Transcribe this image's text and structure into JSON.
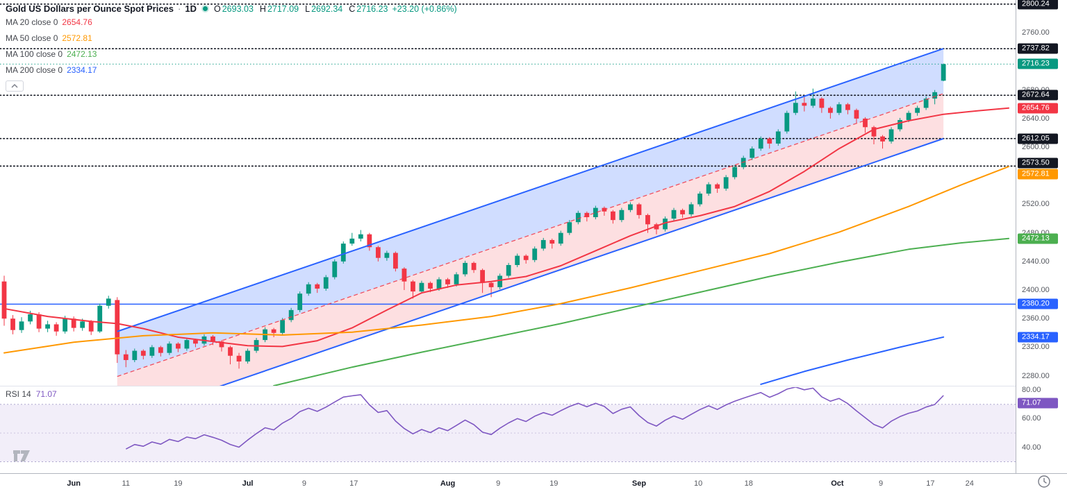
{
  "header": {
    "title": "Gold US Dollars per Ounce Spot Prices",
    "separator": "·",
    "timeframe": "1D",
    "value_color": "#089981",
    "ohlc": [
      {
        "label": "O",
        "value": "2693.03"
      },
      {
        "label": "H",
        "value": "2717.09"
      },
      {
        "label": "L",
        "value": "2692.34"
      },
      {
        "label": "C",
        "value": "2716.23"
      }
    ],
    "change": "+23.20 (+0.86%)"
  },
  "indicators": [
    {
      "label": "MA 20 close 0",
      "value": "2654.76",
      "color": "#F23645"
    },
    {
      "label": "MA 50 close 0",
      "value": "2572.81",
      "color": "#FF9800"
    },
    {
      "label": "MA 100 close 0",
      "value": "2472.13",
      "color": "#4CAF50"
    },
    {
      "label": "MA 200 close 0",
      "value": "2334.17",
      "color": "#2962FF"
    }
  ],
  "rsi_label": {
    "label": "RSI 14",
    "value": "71.07",
    "color": "#7E57C2"
  },
  "price_axis": {
    "labels": [
      {
        "text": "2760.00",
        "price": 2760
      },
      {
        "text": "2680.00",
        "price": 2680
      },
      {
        "text": "2640.00",
        "price": 2640
      },
      {
        "text": "2600.00",
        "price": 2600
      },
      {
        "text": "2520.00",
        "price": 2520
      },
      {
        "text": "2480.00",
        "price": 2480
      },
      {
        "text": "2440.00",
        "price": 2440
      },
      {
        "text": "2400.00",
        "price": 2400
      },
      {
        "text": "2360.00",
        "price": 2360
      },
      {
        "text": "2320.00",
        "price": 2320
      },
      {
        "text": "2280.00",
        "price": 2280
      }
    ],
    "badges": [
      {
        "text": "2800.24",
        "price": 2800.24,
        "bg": "#131722"
      },
      {
        "text": "2737.82",
        "price": 2737.82,
        "bg": "#131722"
      },
      {
        "text": "2716.23",
        "price": 2716.23,
        "bg": "#089981"
      },
      {
        "text": "2672.64",
        "price": 2672.64,
        "bg": "#131722"
      },
      {
        "text": "2654.76",
        "price": 2654.76,
        "bg": "#F23645"
      },
      {
        "text": "2612.05",
        "price": 2612.05,
        "bg": "#131722"
      },
      {
        "text": "2573.50",
        "price": 2573.5,
        "bg": "#131722",
        "dy": -4
      },
      {
        "text": "2572.81",
        "price": 2572.81,
        "bg": "#FF9800",
        "dy": 11
      },
      {
        "text": "2472.13",
        "price": 2472.13,
        "bg": "#4CAF50"
      },
      {
        "text": "2380.20",
        "price": 2380.2,
        "bg": "#2962FF"
      },
      {
        "text": "2334.17",
        "price": 2334.17,
        "bg": "#2962FF"
      }
    ]
  },
  "rsi_axis": {
    "labels": [
      {
        "text": "80.00",
        "value": 80
      },
      {
        "text": "60.00",
        "value": 60
      },
      {
        "text": "40.00",
        "value": 40
      }
    ],
    "badge": {
      "text": "71.07",
      "value": 71.07,
      "bg": "#7E57C2"
    }
  },
  "time_axis": {
    "labels": [
      {
        "text": "Jun",
        "index": 8,
        "month": true
      },
      {
        "text": "11",
        "index": 14
      },
      {
        "text": "19",
        "index": 20
      },
      {
        "text": "Jul",
        "index": 28,
        "month": true
      },
      {
        "text": "9",
        "index": 34.5
      },
      {
        "text": "17",
        "index": 40.2
      },
      {
        "text": "Aug",
        "index": 51,
        "month": true
      },
      {
        "text": "9",
        "index": 56.8
      },
      {
        "text": "19",
        "index": 63.2
      },
      {
        "text": "Sep",
        "index": 73,
        "month": true
      },
      {
        "text": "10",
        "index": 79.8
      },
      {
        "text": "18",
        "index": 85.6
      },
      {
        "text": "Oct",
        "index": 95.8,
        "month": true
      },
      {
        "text": "9",
        "index": 100.8
      },
      {
        "text": "17",
        "index": 106.5
      },
      {
        "text": "24",
        "index": 111
      }
    ]
  },
  "chart_data": {
    "type": "candlestick",
    "title": "Gold US Dollars per Ounce Spot Prices",
    "interval": "1D",
    "last_bar": {
      "open": 2693.03,
      "high": 2717.09,
      "low": 2692.34,
      "close": 2716.23,
      "change": 23.2,
      "change_pct": 0.86
    },
    "y_range": [
      2266,
      2806
    ],
    "up_color": "#089981",
    "down_color": "#F23645",
    "level_color": "#131722",
    "levels": [
      2800.24,
      2737.82,
      2672.64,
      2612.05,
      2573.5
    ],
    "hline": {
      "price": 2380.2,
      "color": "#2962FF"
    },
    "last_price_line": {
      "price": 2716.23,
      "color": "#089981"
    },
    "channel": {
      "start_index": 13,
      "end_index": 108,
      "upper_start": 2342,
      "upper_end": 2738,
      "lower_start": 2216,
      "lower_end": 2612,
      "line_color": "#2962FF",
      "mid_color": "#F23645",
      "fill_upper": "rgba(41,98,255,0.22)",
      "fill_lower": "rgba(242,54,69,0.16)"
    },
    "candles": [
      [
        2412,
        2420,
        2350,
        2360
      ],
      [
        2360,
        2365,
        2338,
        2344
      ],
      [
        2344,
        2362,
        2340,
        2356
      ],
      [
        2356,
        2371,
        2352,
        2366
      ],
      [
        2366,
        2369,
        2341,
        2346
      ],
      [
        2346,
        2357,
        2341,
        2352
      ],
      [
        2352,
        2355,
        2336,
        2342
      ],
      [
        2342,
        2364,
        2339,
        2360
      ],
      [
        2360,
        2363,
        2342,
        2347
      ],
      [
        2347,
        2360,
        2343,
        2356
      ],
      [
        2356,
        2358,
        2337,
        2342
      ],
      [
        2342,
        2381,
        2340,
        2378
      ],
      [
        2378,
        2392,
        2374,
        2388
      ],
      [
        2386,
        2390,
        2298,
        2310
      ],
      [
        2310,
        2316,
        2292,
        2302
      ],
      [
        2302,
        2318,
        2299,
        2315
      ],
      [
        2315,
        2317,
        2303,
        2308
      ],
      [
        2308,
        2323,
        2305,
        2320
      ],
      [
        2320,
        2322,
        2307,
        2312
      ],
      [
        2312,
        2328,
        2309,
        2325
      ],
      [
        2325,
        2327,
        2313,
        2318
      ],
      [
        2318,
        2333,
        2315,
        2330
      ],
      [
        2330,
        2332,
        2320,
        2325
      ],
      [
        2325,
        2338,
        2322,
        2335
      ],
      [
        2335,
        2337,
        2323,
        2328
      ],
      [
        2328,
        2330,
        2314,
        2320
      ],
      [
        2320,
        2322,
        2296,
        2308
      ],
      [
        2308,
        2312,
        2290,
        2300
      ],
      [
        2300,
        2318,
        2297,
        2315
      ],
      [
        2315,
        2333,
        2312,
        2330
      ],
      [
        2330,
        2348,
        2327,
        2345
      ],
      [
        2345,
        2347,
        2334,
        2340
      ],
      [
        2340,
        2361,
        2337,
        2358
      ],
      [
        2358,
        2375,
        2355,
        2372
      ],
      [
        2372,
        2398,
        2369,
        2395
      ],
      [
        2395,
        2411,
        2392,
        2408
      ],
      [
        2408,
        2410,
        2396,
        2402
      ],
      [
        2402,
        2421,
        2399,
        2418
      ],
      [
        2418,
        2443,
        2415,
        2440
      ],
      [
        2440,
        2468,
        2437,
        2465
      ],
      [
        2465,
        2480,
        2462,
        2472
      ],
      [
        2472,
        2484,
        2468,
        2478
      ],
      [
        2478,
        2480,
        2455,
        2460
      ],
      [
        2460,
        2462,
        2440,
        2445
      ],
      [
        2445,
        2455,
        2441,
        2452
      ],
      [
        2452,
        2454,
        2426,
        2430
      ],
      [
        2430,
        2432,
        2400,
        2412
      ],
      [
        2412,
        2414,
        2388,
        2398
      ],
      [
        2398,
        2413,
        2395,
        2410
      ],
      [
        2410,
        2412,
        2397,
        2402
      ],
      [
        2402,
        2418,
        2399,
        2415
      ],
      [
        2415,
        2417,
        2403,
        2408
      ],
      [
        2408,
        2425,
        2405,
        2422
      ],
      [
        2422,
        2441,
        2419,
        2438
      ],
      [
        2438,
        2440,
        2424,
        2428
      ],
      [
        2428,
        2430,
        2396,
        2410
      ],
      [
        2410,
        2412,
        2390,
        2404
      ],
      [
        2404,
        2423,
        2401,
        2420
      ],
      [
        2420,
        2438,
        2417,
        2435
      ],
      [
        2435,
        2451,
        2432,
        2448
      ],
      [
        2448,
        2450,
        2437,
        2442
      ],
      [
        2442,
        2461,
        2439,
        2458
      ],
      [
        2458,
        2473,
        2455,
        2470
      ],
      [
        2470,
        2472,
        2458,
        2465
      ],
      [
        2465,
        2483,
        2462,
        2480
      ],
      [
        2480,
        2498,
        2477,
        2495
      ],
      [
        2495,
        2511,
        2492,
        2508
      ],
      [
        2508,
        2510,
        2496,
        2502
      ],
      [
        2502,
        2518,
        2499,
        2515
      ],
      [
        2515,
        2517,
        2504,
        2510
      ],
      [
        2510,
        2512,
        2493,
        2498
      ],
      [
        2498,
        2515,
        2495,
        2512
      ],
      [
        2512,
        2523,
        2509,
        2520
      ],
      [
        2520,
        2522,
        2500,
        2505
      ],
      [
        2505,
        2507,
        2480,
        2492
      ],
      [
        2492,
        2494,
        2478,
        2485
      ],
      [
        2485,
        2503,
        2482,
        2500
      ],
      [
        2500,
        2515,
        2497,
        2512
      ],
      [
        2512,
        2514,
        2501,
        2506
      ],
      [
        2506,
        2523,
        2503,
        2520
      ],
      [
        2520,
        2538,
        2517,
        2535
      ],
      [
        2535,
        2551,
        2532,
        2548
      ],
      [
        2548,
        2550,
        2536,
        2542
      ],
      [
        2542,
        2561,
        2539,
        2558
      ],
      [
        2558,
        2575,
        2555,
        2572
      ],
      [
        2572,
        2588,
        2569,
        2585
      ],
      [
        2585,
        2601,
        2582,
        2598
      ],
      [
        2598,
        2615,
        2595,
        2612
      ],
      [
        2612,
        2614,
        2598,
        2605
      ],
      [
        2605,
        2625,
        2602,
        2622
      ],
      [
        2622,
        2651,
        2619,
        2648
      ],
      [
        2648,
        2678,
        2645,
        2662
      ],
      [
        2662,
        2670,
        2650,
        2658
      ],
      [
        2658,
        2682,
        2655,
        2668
      ],
      [
        2668,
        2670,
        2648,
        2655
      ],
      [
        2655,
        2657,
        2640,
        2648
      ],
      [
        2648,
        2663,
        2645,
        2660
      ],
      [
        2660,
        2662,
        2646,
        2652
      ],
      [
        2652,
        2654,
        2634,
        2640
      ],
      [
        2640,
        2642,
        2620,
        2628
      ],
      [
        2628,
        2630,
        2604,
        2615
      ],
      [
        2615,
        2617,
        2598,
        2608
      ],
      [
        2608,
        2628,
        2605,
        2625
      ],
      [
        2625,
        2641,
        2622,
        2638
      ],
      [
        2638,
        2651,
        2635,
        2648
      ],
      [
        2648,
        2658,
        2644,
        2655
      ],
      [
        2655,
        2671,
        2652,
        2668
      ],
      [
        2668,
        2680,
        2660,
        2677
      ],
      [
        2693.03,
        2717.09,
        2692.34,
        2716.23
      ]
    ],
    "mas": [
      {
        "period": 20,
        "value": 2654.76,
        "color": "#F23645",
        "points": [
          [
            0,
            2374
          ],
          [
            5,
            2363
          ],
          [
            10,
            2356
          ],
          [
            13,
            2353
          ],
          [
            16,
            2346
          ],
          [
            20,
            2334
          ],
          [
            24,
            2328
          ],
          [
            28,
            2322
          ],
          [
            32,
            2321
          ],
          [
            36,
            2329
          ],
          [
            40,
            2347
          ],
          [
            44,
            2372
          ],
          [
            48,
            2396
          ],
          [
            52,
            2407
          ],
          [
            56,
            2412
          ],
          [
            60,
            2419
          ],
          [
            64,
            2434
          ],
          [
            68,
            2455
          ],
          [
            72,
            2476
          ],
          [
            76,
            2494
          ],
          [
            80,
            2504
          ],
          [
            84,
            2517
          ],
          [
            88,
            2538
          ],
          [
            92,
            2566
          ],
          [
            96,
            2598
          ],
          [
            100,
            2625
          ],
          [
            104,
            2637
          ],
          [
            108,
            2646
          ],
          [
            112,
            2651
          ],
          [
            115.5,
            2654.76
          ]
        ]
      },
      {
        "period": 50,
        "value": 2572.81,
        "color": "#FF9800",
        "points": [
          [
            0,
            2312
          ],
          [
            8,
            2327
          ],
          [
            16,
            2336
          ],
          [
            24,
            2340
          ],
          [
            32,
            2337
          ],
          [
            40,
            2341
          ],
          [
            48,
            2351
          ],
          [
            56,
            2363
          ],
          [
            64,
            2381
          ],
          [
            72,
            2403
          ],
          [
            80,
            2427
          ],
          [
            88,
            2451
          ],
          [
            96,
            2481
          ],
          [
            104,
            2517
          ],
          [
            110,
            2547
          ],
          [
            115.5,
            2572.81
          ]
        ]
      },
      {
        "period": 100,
        "value": 2472.13,
        "color": "#4CAF50",
        "points": [
          [
            31,
            2266
          ],
          [
            40,
            2292
          ],
          [
            48,
            2313
          ],
          [
            56,
            2333
          ],
          [
            64,
            2353
          ],
          [
            72,
            2375
          ],
          [
            80,
            2397
          ],
          [
            88,
            2419
          ],
          [
            96,
            2439
          ],
          [
            104,
            2457
          ],
          [
            110,
            2466
          ],
          [
            115.5,
            2472.13
          ]
        ]
      },
      {
        "period": 200,
        "value": 2334.17,
        "color": "#2962FF",
        "points": [
          [
            87,
            2268
          ],
          [
            92,
            2286
          ],
          [
            97,
            2302
          ],
          [
            103,
            2320
          ],
          [
            108,
            2334.17
          ]
        ]
      }
    ],
    "rsi": {
      "period": 14,
      "value": 71.07,
      "color": "#7E57C2",
      "band": [
        30,
        70
      ],
      "band_fill": "rgba(126,87,194,0.10)",
      "scale_range": [
        22,
        82
      ]
    }
  }
}
